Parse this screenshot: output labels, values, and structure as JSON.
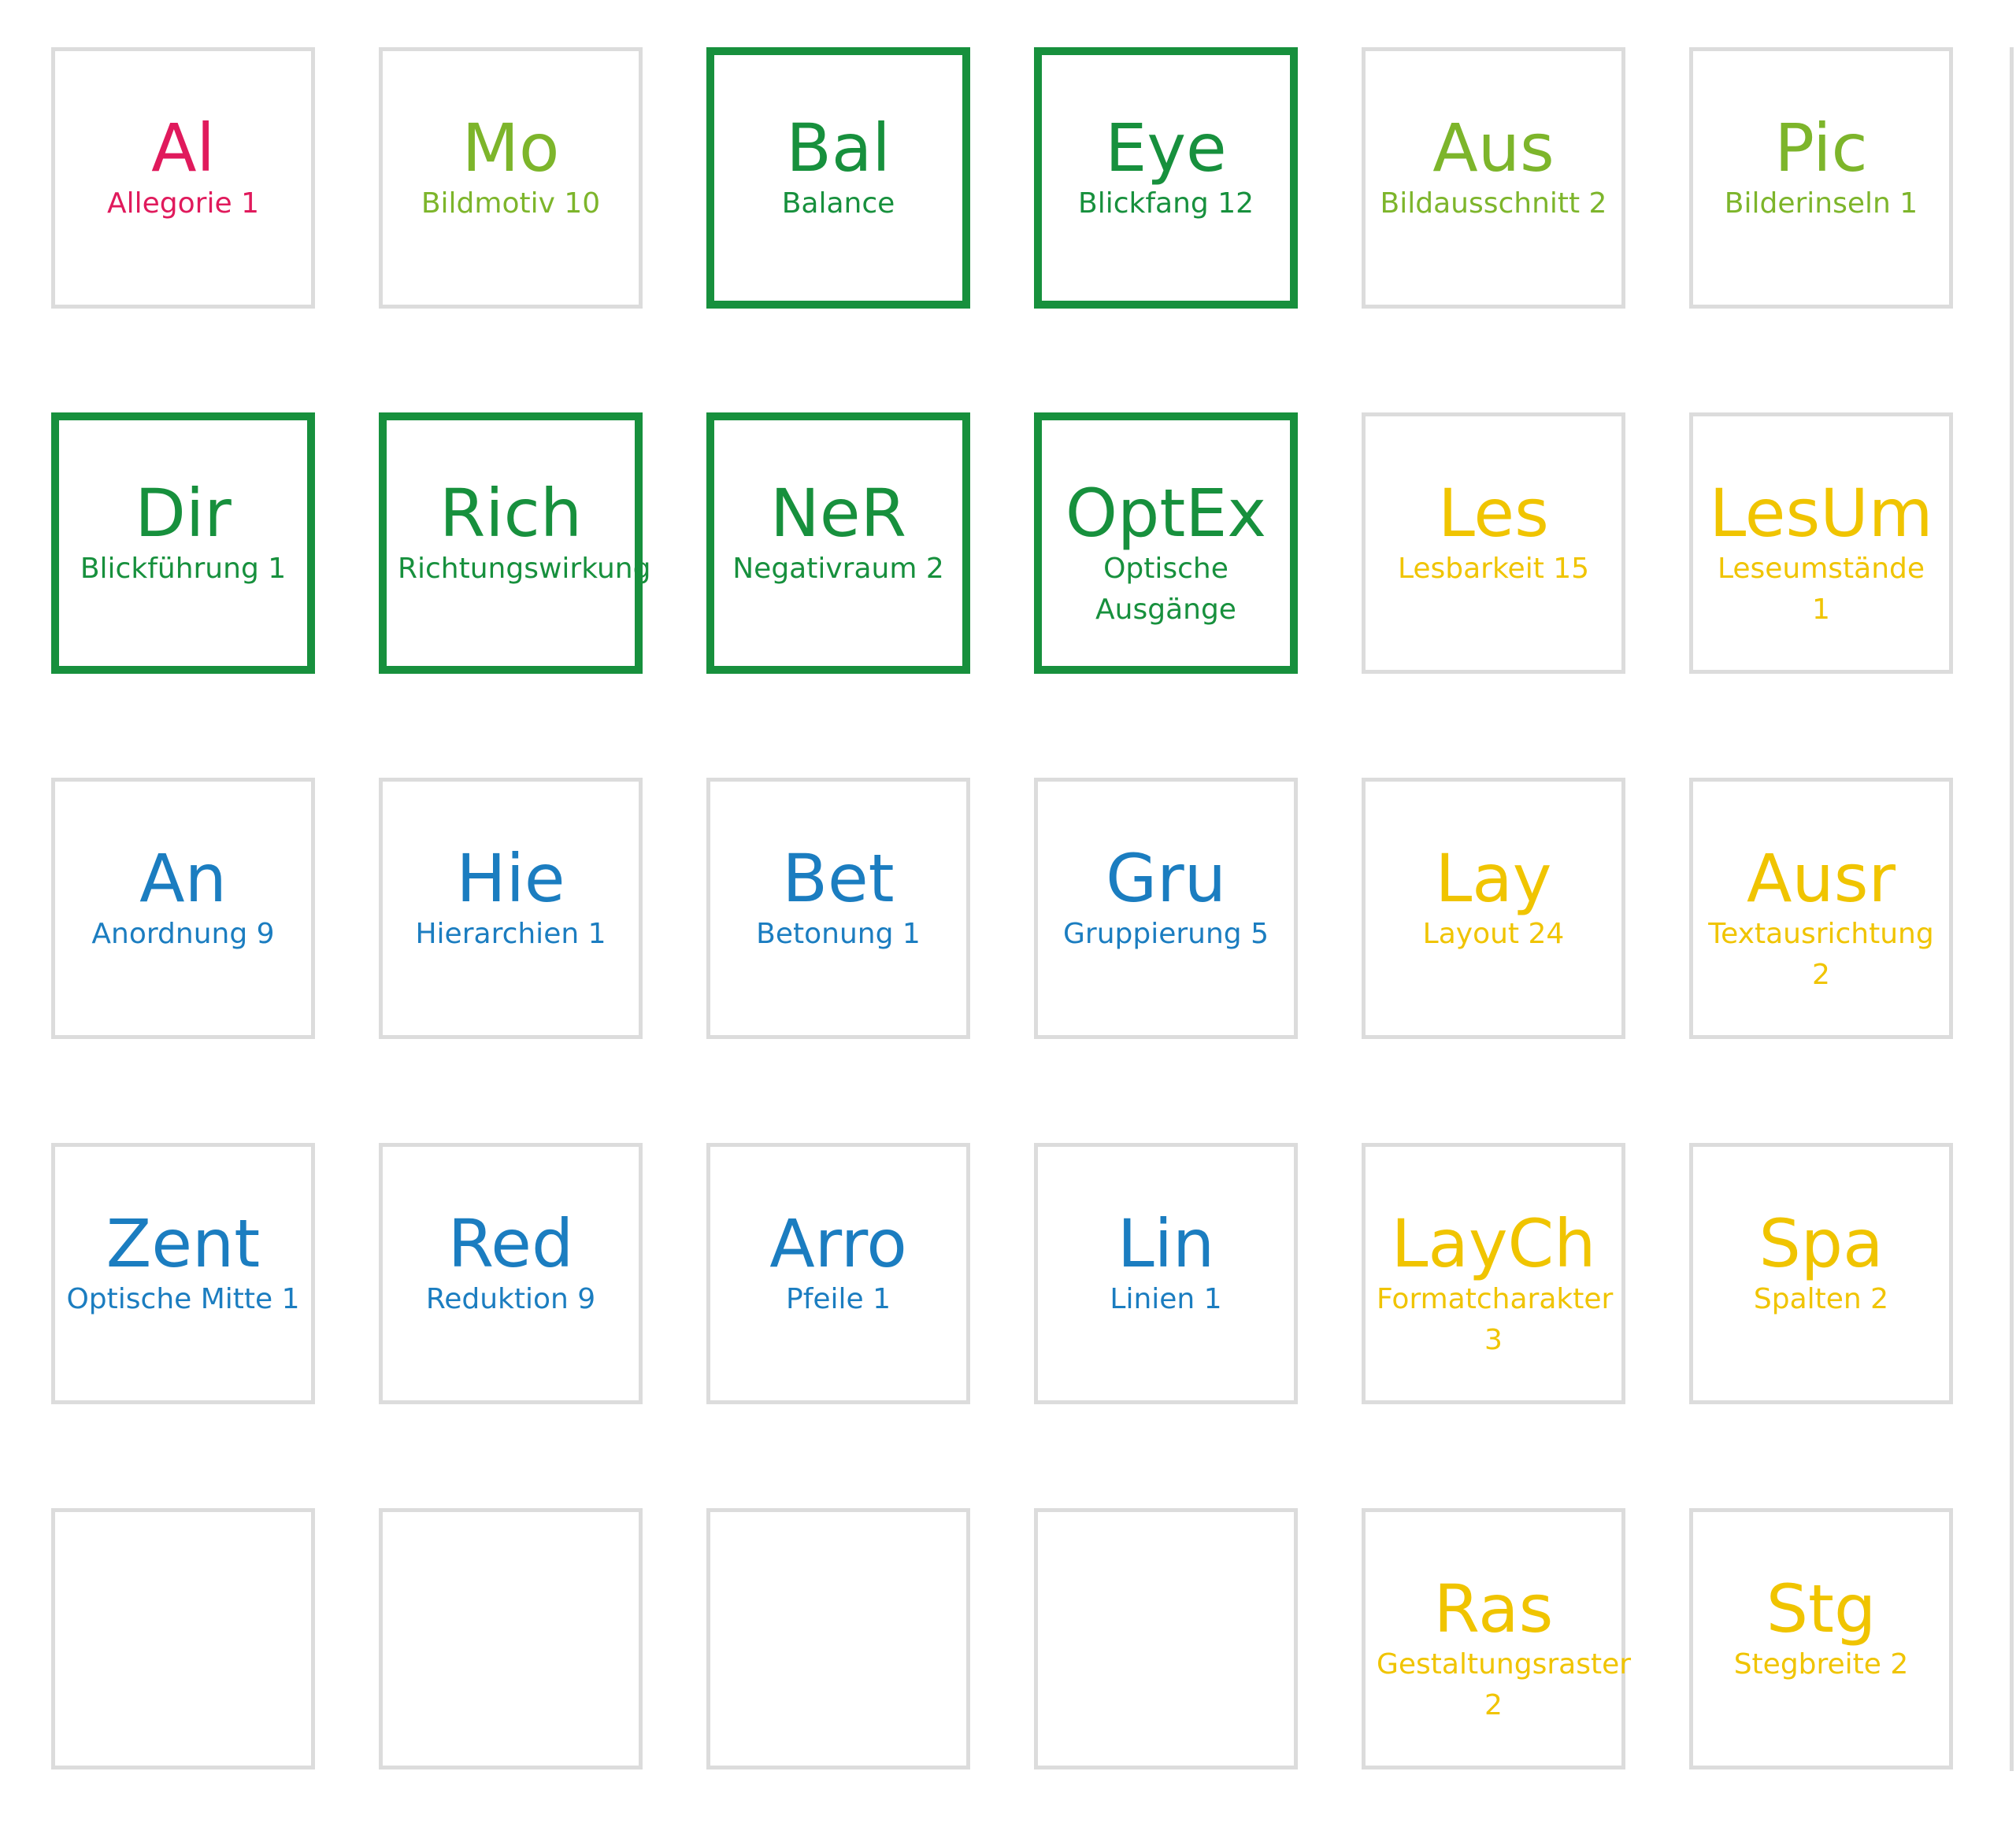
{
  "grid": {
    "rows": [
      [
        {
          "symbol": "Al",
          "label": "Allegorie 1",
          "color": "#e01a5c"
        },
        {
          "symbol": "Mo",
          "label": "Bildmotiv 10",
          "color": "#7db52b"
        },
        {
          "symbol": "Bal",
          "label": "Balance",
          "color": "#17903d",
          "highlighted": true
        },
        {
          "symbol": "Eye",
          "label": "Blickfang 12",
          "color": "#17903d",
          "highlighted": true
        },
        {
          "symbol": "Aus",
          "label": "Bildausschnitt 2",
          "color": "#7db52b"
        },
        {
          "symbol": "Pic",
          "label": "Bilderinseln 1",
          "color": "#7db52b"
        }
      ],
      [
        {
          "symbol": "Dir",
          "label": "Blickführung 1",
          "color": "#17903d",
          "highlighted": true
        },
        {
          "symbol": "Rich",
          "label": "Richtungswirkung",
          "color": "#17903d",
          "highlighted": true
        },
        {
          "symbol": "NeR",
          "label": "Negativraum 2",
          "color": "#17903d",
          "highlighted": true
        },
        {
          "symbol": "OptEx",
          "label": "Optische Ausgänge",
          "color": "#17903d",
          "highlighted": true
        },
        {
          "symbol": "Les",
          "label": "Lesbarkeit 15",
          "color": "#f0c400"
        },
        {
          "symbol": "LesUm",
          "label": "Leseumstände 1",
          "color": "#f0c400"
        }
      ],
      [
        {
          "symbol": "An",
          "label": "Anordnung 9",
          "color": "#1b7dc0"
        },
        {
          "symbol": "Hie",
          "label": "Hierarchien 1",
          "color": "#1b7dc0"
        },
        {
          "symbol": "Bet",
          "label": "Betonung 1",
          "color": "#1b7dc0"
        },
        {
          "symbol": "Gru",
          "label": "Gruppierung 5",
          "color": "#1b7dc0"
        },
        {
          "symbol": "Lay",
          "label": "Layout 24",
          "color": "#f0c400"
        },
        {
          "symbol": "Ausr",
          "label": "Textausrichtung 2",
          "color": "#f0c400"
        }
      ],
      [
        {
          "symbol": "Zent",
          "label": "Optische Mitte 1",
          "color": "#1b7dc0"
        },
        {
          "symbol": "Red",
          "label": "Reduktion 9",
          "color": "#1b7dc0"
        },
        {
          "symbol": "Arro",
          "label": "Pfeile 1",
          "color": "#1b7dc0"
        },
        {
          "symbol": "Lin",
          "label": "Linien 1",
          "color": "#1b7dc0"
        },
        {
          "symbol": "LayCh",
          "label": "Formatcharakter 3",
          "color": "#f0c400"
        },
        {
          "symbol": "Spa",
          "label": "Spalten 2",
          "color": "#f0c400"
        }
      ],
      [
        null,
        null,
        null,
        null,
        {
          "symbol": "Ras",
          "label": "Gestaltungsraster 2",
          "color": "#f0c400"
        },
        {
          "symbol": "Stg",
          "label": "Stegbreite 2",
          "color": "#f0c400"
        }
      ]
    ]
  }
}
